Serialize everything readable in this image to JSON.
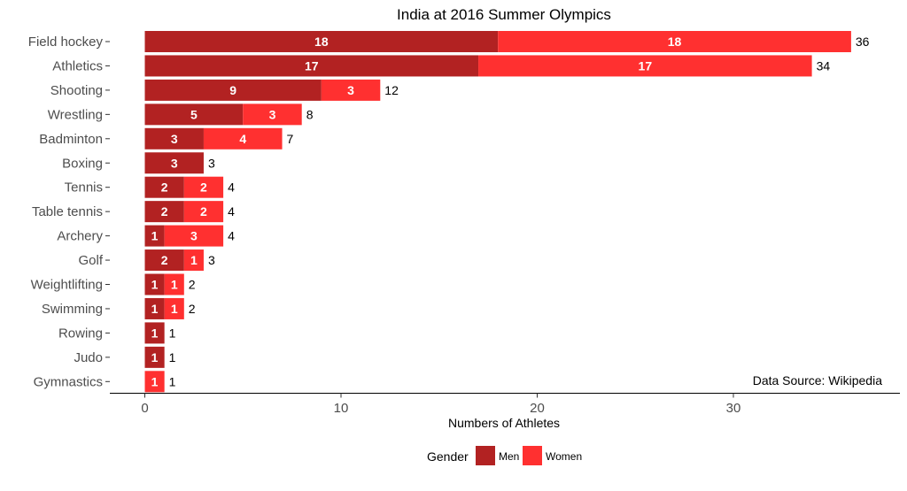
{
  "chart_data": {
    "type": "bar",
    "orientation": "horizontal",
    "stacked": true,
    "title": "India at 2016 Summer Olympics",
    "xlabel": "Numbers of Athletes",
    "ylabel": "",
    "xlim": [
      0,
      36
    ],
    "x_ticks": [
      0,
      10,
      20,
      30
    ],
    "grid": false,
    "categories": [
      "Field hockey",
      "Athletics",
      "Shooting",
      "Wrestling",
      "Badminton",
      "Boxing",
      "Tennis",
      "Table tennis",
      "Archery",
      "Golf",
      "Weightlifting",
      "Swimming",
      "Rowing",
      "Judo",
      "Gymnastics"
    ],
    "series": [
      {
        "name": "Men",
        "color": "#b22222",
        "values": [
          18,
          17,
          9,
          5,
          3,
          3,
          2,
          2,
          1,
          2,
          1,
          1,
          1,
          1,
          0
        ]
      },
      {
        "name": "Women",
        "color": "#ff3030",
        "values": [
          18,
          17,
          3,
          3,
          4,
          0,
          2,
          2,
          3,
          1,
          1,
          1,
          0,
          0,
          1
        ]
      }
    ],
    "totals": [
      36,
      34,
      12,
      8,
      7,
      3,
      4,
      4,
      4,
      3,
      2,
      2,
      1,
      1,
      1
    ],
    "legend": {
      "title": "Gender",
      "position": "bottom"
    },
    "annotation": "Data Source: Wikipedia"
  }
}
